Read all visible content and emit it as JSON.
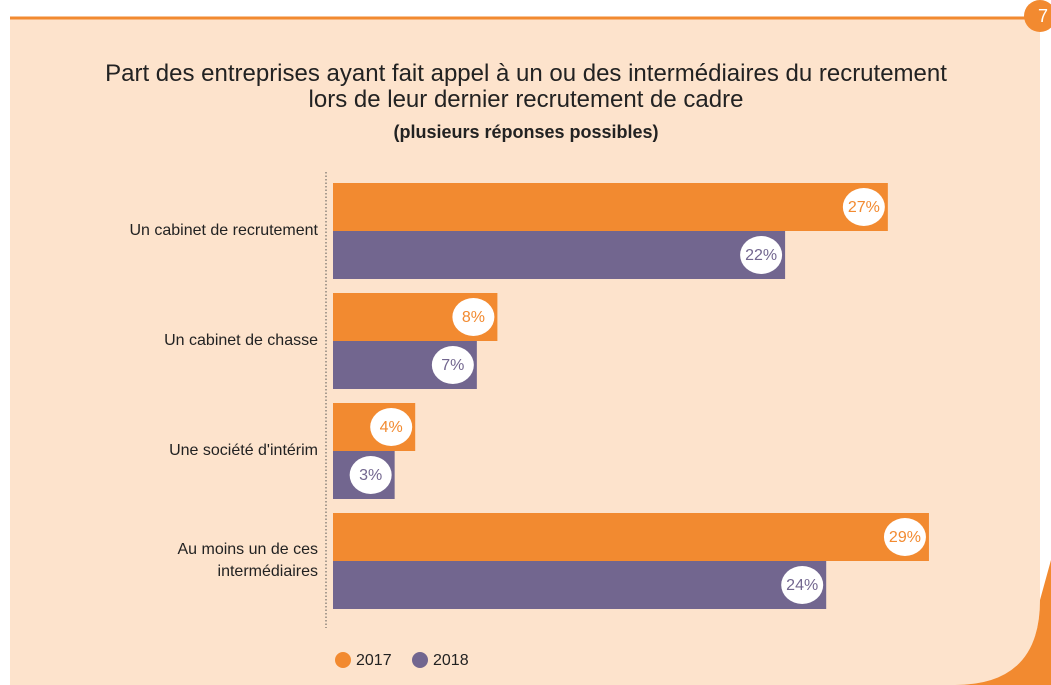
{
  "page_number": "7",
  "chart_data": {
    "type": "bar",
    "orientation": "horizontal",
    "title": "Part des entreprises ayant fait appel à un ou des intermédiaires du recrutement\nlors de leur dernier recrutement de cadre",
    "subtitle": "(plusieurs réponses possibles)",
    "categories": [
      "Un cabinet de recrutement",
      "Un cabinet de chasse",
      "Une société d'intérim",
      "Au moins un de ces\nintermédiaires"
    ],
    "series": [
      {
        "name": "2017",
        "color": "#f28a30",
        "values": [
          27,
          8,
          4,
          29
        ],
        "value_labels": [
          "27%",
          "8%",
          "4%",
          "29%"
        ]
      },
      {
        "name": "2018",
        "color": "#72668f",
        "values": [
          22,
          7,
          3,
          24
        ],
        "value_labels": [
          "22%",
          "7%",
          "3%",
          "24%"
        ]
      }
    ]
  }
}
